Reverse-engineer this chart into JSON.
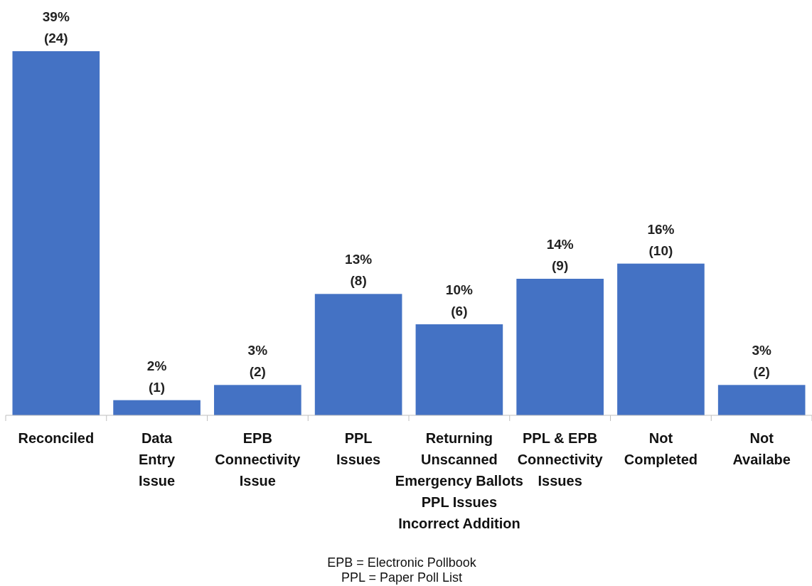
{
  "chart_data": {
    "type": "bar",
    "categories": [
      "Reconciled",
      "Data\nEntry\nIssue",
      "EPB\nConnectivity\nIssue",
      "PPL\nIssues",
      "Returning\nUnscanned\nEmergency  Ballots\nPPL Issues\nIncorrect Addition",
      "PPL & EPB\nConnectivity\nIssues",
      "Not\nCompleted",
      "Not\nAvailabe"
    ],
    "values": [
      24,
      1,
      2,
      8,
      6,
      9,
      10,
      2
    ],
    "value_labels": [
      "39%\n(24)",
      "2%\n(1)",
      "3%\n(2)",
      "13%\n(8)",
      "10%\n(6)",
      "14%\n(9)",
      "16%\n(10)",
      "3%\n(2)"
    ],
    "color": "#4472c4",
    "annotations": [
      "EPB = Electronic Pollbook",
      "PPL = Paper Poll List"
    ]
  }
}
